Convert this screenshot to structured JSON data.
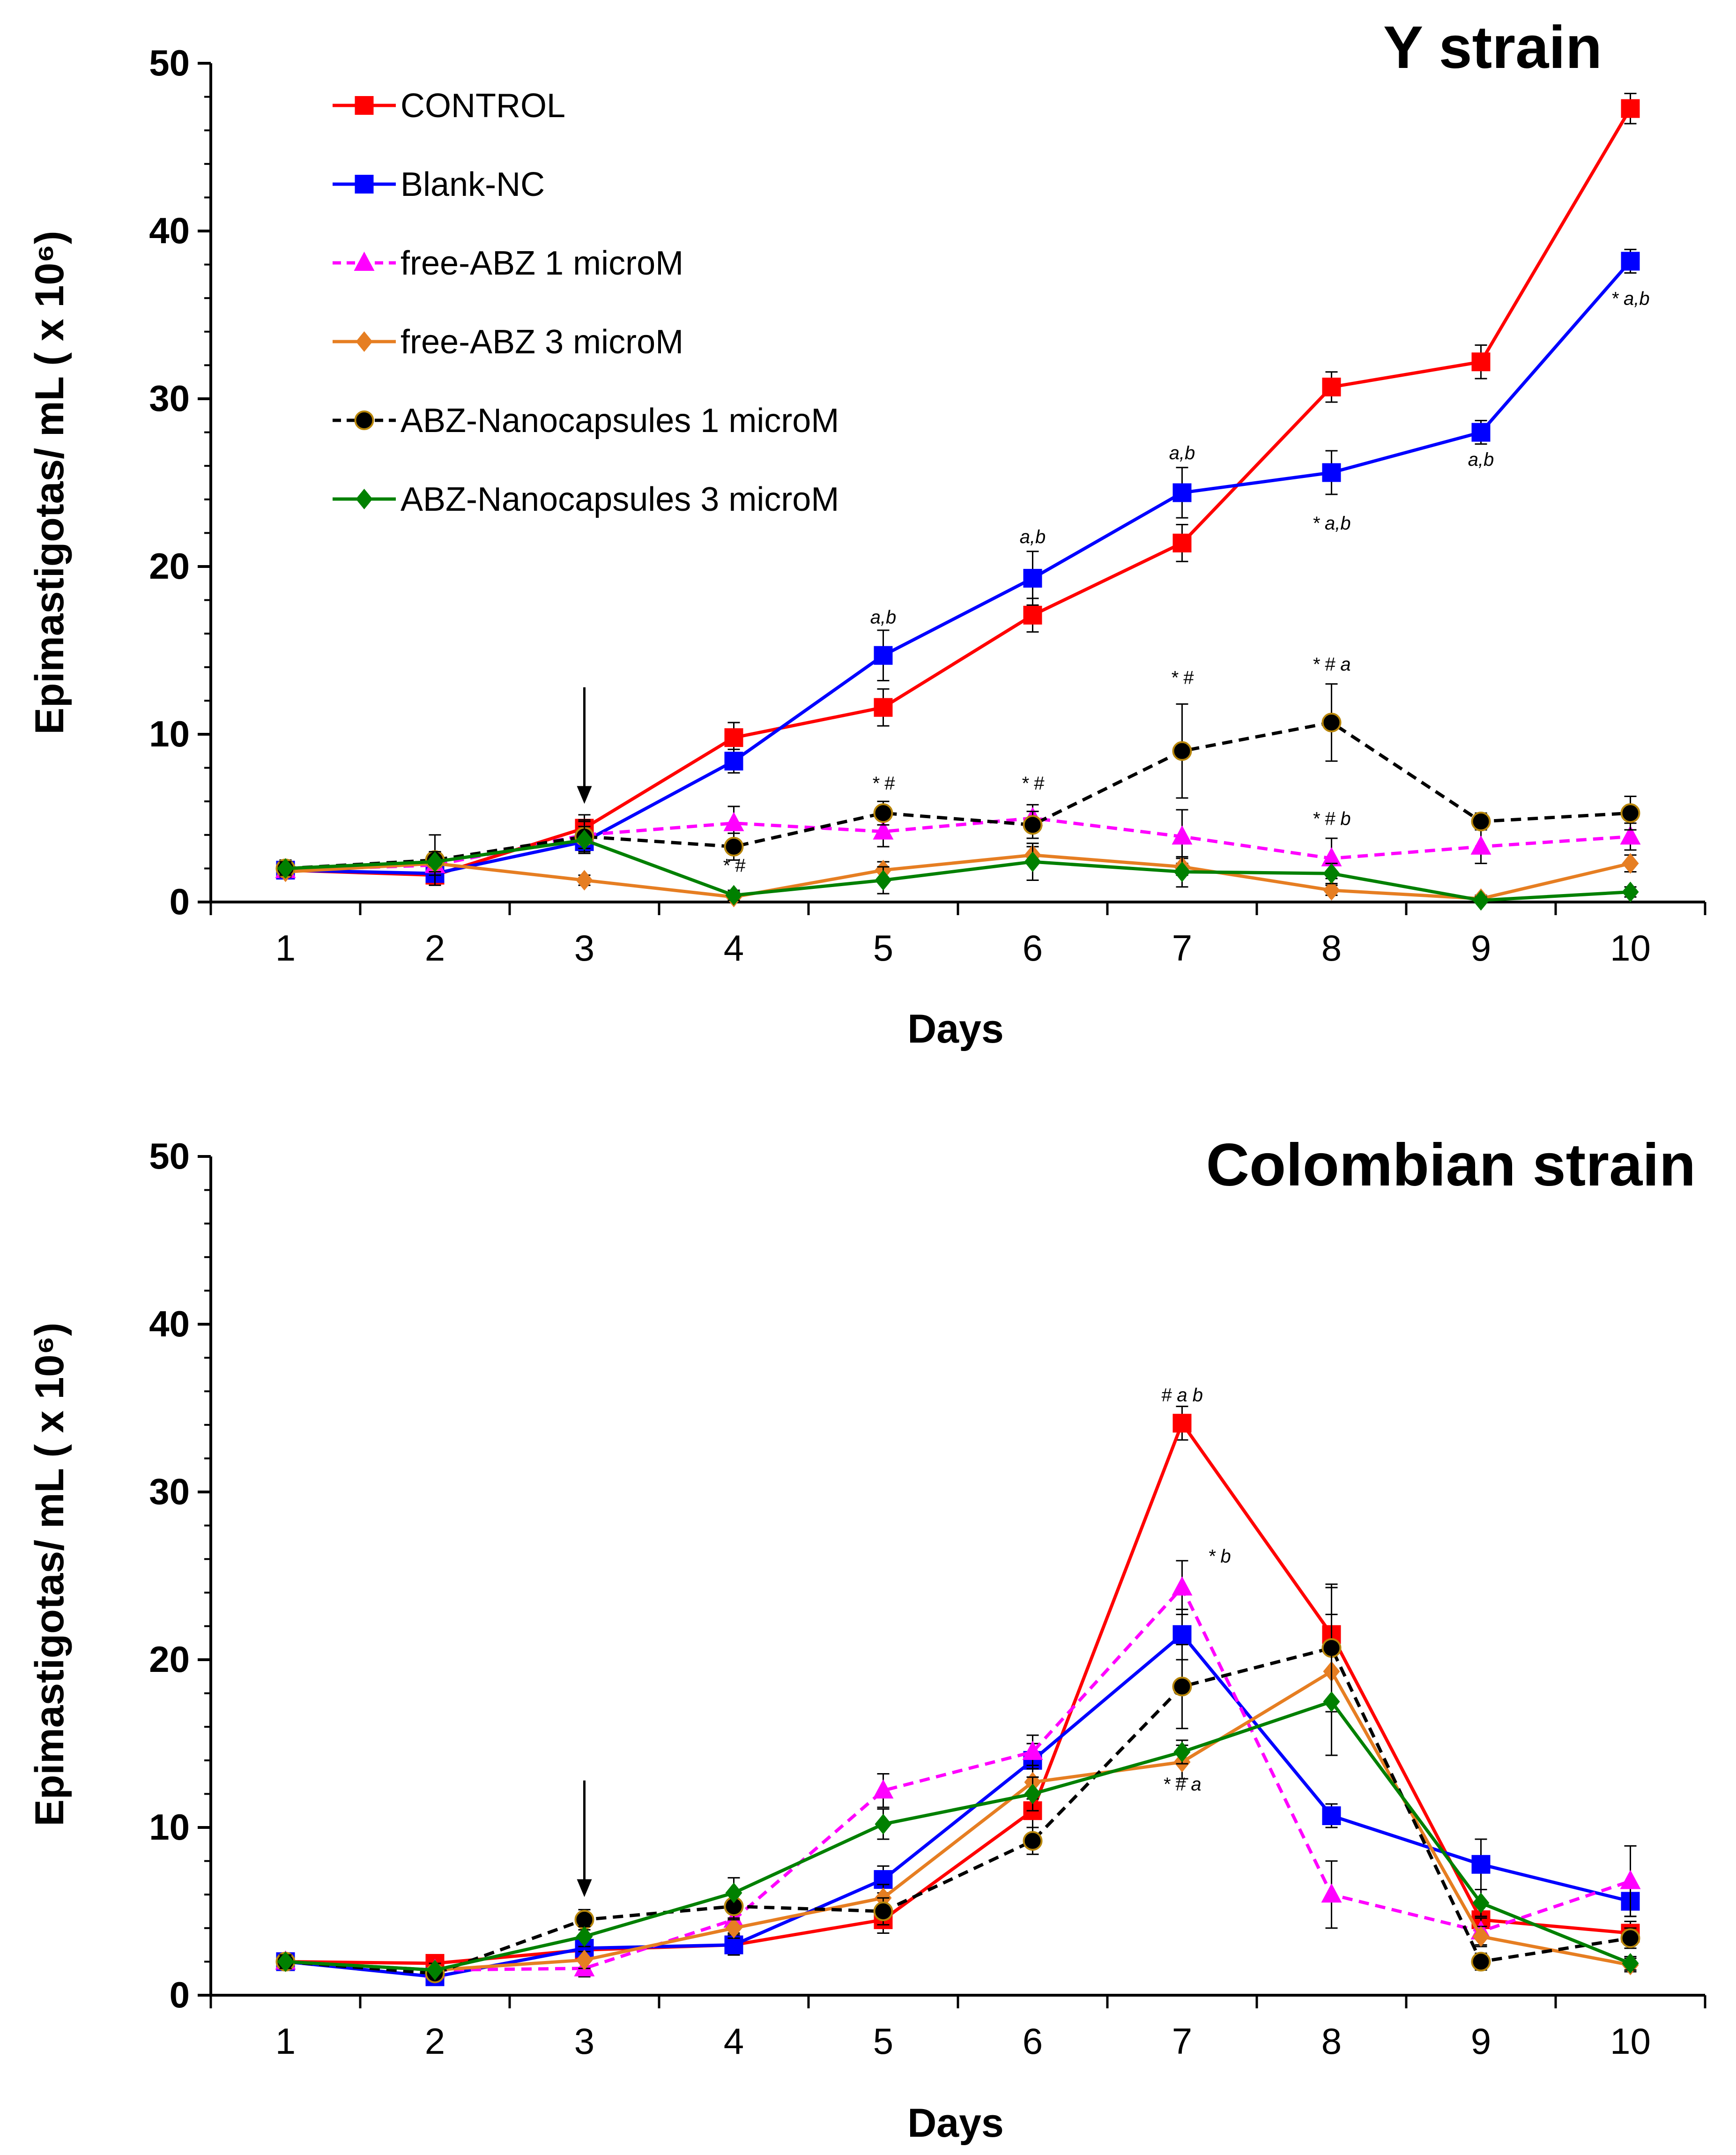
{
  "chart_data": [
    {
      "type": "line",
      "title": "Y strain",
      "xlabel": "Days",
      "ylabel": "Epimastigotas/ mL ( x 10⁶)",
      "x": [
        1,
        2,
        3,
        4,
        5,
        6,
        7,
        8,
        9,
        10
      ],
      "xticks": [
        "1",
        "2",
        "3",
        "4",
        "5",
        "6",
        "7",
        "8",
        "9",
        "10"
      ],
      "yticks": [
        "0",
        "10",
        "20",
        "30",
        "40",
        "50"
      ],
      "ylim": [
        0,
        50
      ],
      "arrow_day": 3,
      "legend_position": "top-left",
      "series": [
        {
          "name": "CONTROL",
          "color": "#ff0000",
          "marker": "square",
          "dashed": false,
          "values": [
            1.9,
            1.6,
            4.4,
            9.8,
            11.6,
            17.1,
            21.4,
            30.7,
            32.2,
            47.3
          ],
          "errors": [
            0.4,
            0.5,
            0.8,
            0.9,
            1.1,
            1.0,
            1.1,
            0.9,
            1.0,
            0.9
          ]
        },
        {
          "name": "Blank-NC",
          "color": "#0000ff",
          "marker": "square",
          "dashed": false,
          "values": [
            1.9,
            1.7,
            3.6,
            8.4,
            14.7,
            19.3,
            24.4,
            25.6,
            28.0,
            38.2
          ],
          "errors": [
            0.4,
            0.5,
            0.6,
            0.7,
            1.5,
            1.6,
            1.5,
            1.3,
            0.7,
            0.7
          ]
        },
        {
          "name": "free-ABZ 1 microM",
          "color": "#ff00ff",
          "marker": "triangle",
          "dashed": true,
          "values": [
            1.9,
            2.2,
            4.0,
            4.7,
            4.2,
            5.0,
            3.9,
            2.6,
            3.3,
            3.9
          ],
          "errors": [
            0.4,
            0.6,
            0.8,
            1.0,
            0.9,
            0.8,
            1.6,
            1.2,
            1.0,
            0.8
          ]
        },
        {
          "name": "free-ABZ 3 microM",
          "color": "#e67e22",
          "marker": "diamond",
          "dashed": false,
          "values": [
            1.8,
            2.3,
            1.3,
            0.3,
            1.9,
            2.8,
            2.1,
            0.7,
            0.2,
            2.3
          ],
          "errors": [
            0.3,
            0.5,
            0.3,
            0.3,
            0.5,
            0.5,
            0.5,
            0.3,
            0.2,
            0.5
          ]
        },
        {
          "name": "ABZ-Nanocapsules 1 microM",
          "color": "#000000",
          "marker": "circle",
          "dashed": true,
          "values": [
            2.0,
            2.5,
            3.9,
            3.3,
            5.3,
            4.6,
            9.0,
            10.7,
            4.8,
            5.3
          ],
          "errors": [
            0.5,
            1.5,
            1.0,
            0.8,
            0.7,
            0.8,
            2.8,
            2.3,
            0.5,
            1.0
          ]
        },
        {
          "name": "ABZ-Nanocapsules 3 microM",
          "color": "#008000",
          "marker": "diamond",
          "dashed": false,
          "values": [
            2.0,
            2.4,
            3.7,
            0.4,
            1.3,
            2.4,
            1.8,
            1.7,
            0.1,
            0.6
          ],
          "errors": [
            0.4,
            0.6,
            0.8,
            0.3,
            0.8,
            1.1,
            0.9,
            0.6,
            0.2,
            0.3
          ]
        }
      ],
      "annotations": [
        {
          "x": 5,
          "y": 16.6,
          "text": "a,b"
        },
        {
          "x": 6,
          "y": 21.4,
          "text": "a,b"
        },
        {
          "x": 7,
          "y": 26.4,
          "text": "a,b"
        },
        {
          "x": 8,
          "y": 22.2,
          "text": "* a,b"
        },
        {
          "x": 9,
          "y": 26.0,
          "text": "a,b"
        },
        {
          "x": 10,
          "y": 35.6,
          "text": "* a,b"
        },
        {
          "x": 4,
          "y": 1.8,
          "text": "* #"
        },
        {
          "x": 5,
          "y": 6.7,
          "text": "* #"
        },
        {
          "x": 6,
          "y": 6.7,
          "text": "* #"
        },
        {
          "x": 7,
          "y": 13.0,
          "text": "* #"
        },
        {
          "x": 8,
          "y": 13.8,
          "text": "* # a"
        },
        {
          "x": 8,
          "y": 4.6,
          "text": "* # b"
        }
      ]
    },
    {
      "type": "line",
      "title": "Colombian strain",
      "xlabel": "Days",
      "ylabel": "Epimastigotas/ mL ( x 10⁶)",
      "x": [
        1,
        2,
        3,
        4,
        5,
        6,
        7,
        8,
        9,
        10
      ],
      "xticks": [
        "1",
        "2",
        "3",
        "4",
        "5",
        "6",
        "7",
        "8",
        "9",
        "10"
      ],
      "yticks": [
        "0",
        "10",
        "20",
        "30",
        "40",
        "50"
      ],
      "ylim": [
        0,
        50
      ],
      "arrow_day": 3,
      "series": [
        {
          "name": "CONTROL",
          "color": "#ff0000",
          "marker": "square",
          "dashed": false,
          "values": [
            2.0,
            1.9,
            2.7,
            3.0,
            4.5,
            11.0,
            34.1,
            21.5,
            4.5,
            3.7
          ],
          "errors": [
            0.4,
            0.5,
            0.6,
            0.6,
            0.8,
            1.0,
            1.0,
            1.2,
            0.8,
            0.7
          ]
        },
        {
          "name": "Blank-NC",
          "color": "#0000ff",
          "marker": "square",
          "dashed": false,
          "values": [
            2.0,
            1.1,
            2.8,
            3.0,
            6.9,
            14.0,
            21.5,
            10.7,
            7.8,
            5.6
          ],
          "errors": [
            0.4,
            0.4,
            0.6,
            0.6,
            0.8,
            1.0,
            1.5,
            0.7,
            1.5,
            0.9
          ]
        },
        {
          "name": "free-ABZ 1 microM",
          "color": "#ff00ff",
          "marker": "triangle",
          "dashed": true,
          "values": [
            2.0,
            1.5,
            1.6,
            4.5,
            12.2,
            14.5,
            24.3,
            6.0,
            3.8,
            6.8
          ],
          "errors": [
            0.4,
            0.4,
            0.5,
            0.8,
            1.0,
            1.0,
            1.6,
            2.0,
            0.8,
            2.1
          ]
        },
        {
          "name": "free-ABZ 3 microM",
          "color": "#e67e22",
          "marker": "diamond",
          "dashed": false,
          "values": [
            2.0,
            1.5,
            2.1,
            4.0,
            5.8,
            12.7,
            13.9,
            19.3,
            3.5,
            1.8
          ],
          "errors": [
            0.4,
            0.4,
            0.5,
            0.6,
            0.8,
            1.0,
            1.0,
            5.0,
            0.6,
            0.4
          ]
        },
        {
          "name": "ABZ-Nanocapsules 1 microM",
          "color": "#000000",
          "marker": "circle",
          "dashed": true,
          "values": [
            2.0,
            1.3,
            4.5,
            5.3,
            5.0,
            9.2,
            18.4,
            20.7,
            2.0,
            3.4
          ],
          "errors": [
            0.4,
            0.4,
            0.6,
            0.8,
            0.8,
            0.8,
            2.5,
            3.8,
            0.5,
            0.6
          ]
        },
        {
          "name": "ABZ-Nanocapsules 3 microM",
          "color": "#008000",
          "marker": "diamond",
          "dashed": false,
          "values": [
            2.0,
            1.5,
            3.5,
            6.1,
            10.2,
            12.0,
            14.5,
            17.5,
            5.5,
            1.9
          ],
          "errors": [
            0.4,
            0.4,
            0.6,
            0.9,
            0.9,
            1.0,
            0.7,
            3.2,
            0.8,
            0.4
          ]
        }
      ],
      "annotations": [
        {
          "x": 7,
          "y": 35.4,
          "text": "# a b"
        },
        {
          "x": 7.25,
          "y": 25.8,
          "text": "* b"
        },
        {
          "x": 7,
          "y": 12.2,
          "text": "* # a"
        }
      ]
    }
  ]
}
